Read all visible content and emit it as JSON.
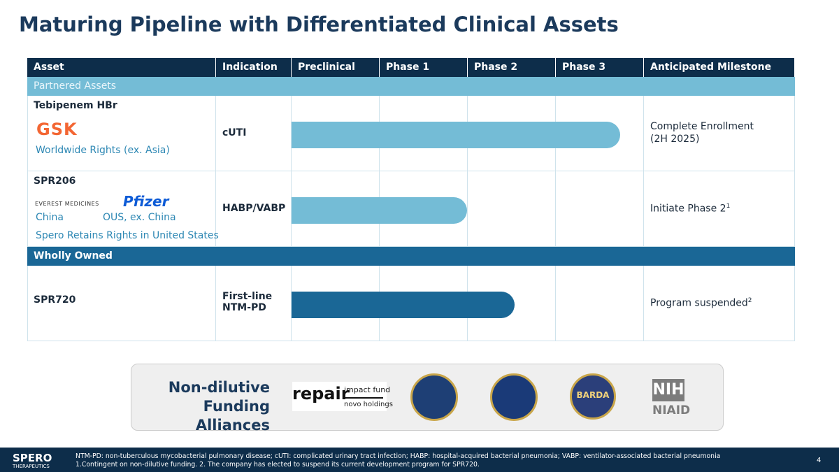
{
  "header": {
    "title": "Maturing Pipeline with Differentiated Clinical Assets"
  },
  "table": {
    "headers": [
      "Asset",
      "Indication",
      "Preclinical",
      "Phase 1",
      "Phase 2",
      "Phase 3",
      "Anticipated Milestone"
    ],
    "sections": [
      {
        "label": "Partnered Assets",
        "rows": [
          {
            "asset": "Tebipenem HBr",
            "partners": [
              "GSK"
            ],
            "rights": [
              "Worldwide Rights (ex. Asia)"
            ],
            "indication": "cUTI",
            "milestone": [
              "Complete Enrollment",
              "(2H 2025)"
            ],
            "sup": null
          },
          {
            "asset": "SPR206",
            "partners": [
              "EVEREST MEDICINES",
              "Pfizer"
            ],
            "rights": [
              "China",
              "OUS, ex. China",
              "Spero Retains Rights in United States"
            ],
            "indication": "HABP/VABP",
            "milestone": [
              "Initiate Phase 2"
            ],
            "sup": "1"
          }
        ]
      },
      {
        "label": "Wholly Owned",
        "rows": [
          {
            "asset": "SPR720",
            "partners": [],
            "rights": [],
            "indication": "First-line\nNTM-PD",
            "milestone": [
              "Program suspended"
            ],
            "sup": "2"
          }
        ]
      }
    ]
  },
  "funding": {
    "title": "Non-dilutive\nFunding Alliances",
    "logos": [
      "repair",
      "impact fund",
      "novo holdings",
      "BARDA",
      "NIH",
      "NIAID"
    ]
  },
  "footer": {
    "brand": "SPERO",
    "brand_sub": "THERAPEUTICS",
    "notes": [
      "NTM-PD: non-tuberculous mycobacterial pulmonary disease; cUTI: complicated urinary tract infection; HABP: hospital-acquired bacterial pneumonia; VABP: ventilator-associated bacterial pneumonia",
      "1.Contingent on non-dilutive funding. 2. The company has elected to suspend its current development program for SPR720."
    ],
    "page": "4"
  }
}
